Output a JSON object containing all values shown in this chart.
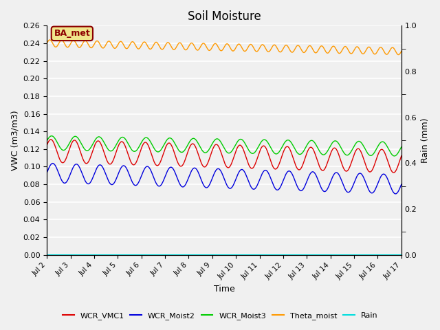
{
  "title": "Soil Moisture",
  "xlabel": "Time",
  "ylabel_left": "VWC (m3/m3)",
  "ylabel_right": "Rain (mm)",
  "ylim_left": [
    0.0,
    0.26
  ],
  "ylim_right": [
    0.0,
    1.0
  ],
  "xlim": [
    0,
    15
  ],
  "xtick_labels": [
    "Jul 2",
    "Jul 3",
    "Jul 4",
    "Jul 5",
    "Jul 6",
    "Jul 7",
    "Jul 8",
    "Jul 9",
    "Jul 10",
    "Jul 11",
    "Jul 12",
    "Jul 13",
    "Jul 14",
    "Jul 15",
    "Jul 16",
    "Jul 17"
  ],
  "yticks_left": [
    0.0,
    0.02,
    0.04,
    0.06,
    0.08,
    0.1,
    0.12,
    0.14,
    0.16,
    0.18,
    0.2,
    0.22,
    0.24,
    0.26
  ],
  "yticks_right_vals": [
    0.0,
    0.2,
    0.4,
    0.6,
    0.8,
    1.0
  ],
  "yticks_right_labels": [
    "0.0",
    "0.2",
    "0.4",
    "0.6",
    "0.8",
    "1.0"
  ],
  "bg_color": "#f0f0f0",
  "plot_bg_color": "#f0f0f0",
  "grid_color": "white",
  "annotation_text": "BA_met",
  "annotation_color": "#8B0000",
  "annotation_bg": "#f0e68c",
  "n_points": 2000,
  "days": 15,
  "series": {
    "WCR_VMC1": {
      "color": "#dd0000",
      "base": 0.118,
      "amplitude": 0.013,
      "trend": -0.012,
      "period_days": 1.0,
      "phase": 0.5
    },
    "WCR_Moist2": {
      "color": "#0000dd",
      "base": 0.093,
      "amplitude": 0.011,
      "trend": -0.013,
      "period_days": 1.0,
      "phase": 0.0
    },
    "WCR_Moist3": {
      "color": "#00cc00",
      "base": 0.127,
      "amplitude": 0.008,
      "trend": -0.007,
      "period_days": 1.0,
      "phase": 0.3
    },
    "Theta_moist": {
      "color": "#ff9900",
      "base": 0.24,
      "amplitude": 0.004,
      "trend": -0.009,
      "period_days": 0.5,
      "phase": 0.0
    },
    "Rain": {
      "color": "#00dddd",
      "base": 0.0,
      "amplitude": 0.0,
      "trend": 0.0,
      "period_days": 1.0,
      "phase": 0.0
    }
  },
  "legend_entries": [
    {
      "label": "WCR_VMC1",
      "color": "#dd0000"
    },
    {
      "label": "WCR_Moist2",
      "color": "#0000dd"
    },
    {
      "label": "WCR_Moist3",
      "color": "#00cc00"
    },
    {
      "label": "Theta_moist",
      "color": "#ff9900"
    },
    {
      "label": "Rain",
      "color": "#00dddd"
    }
  ]
}
